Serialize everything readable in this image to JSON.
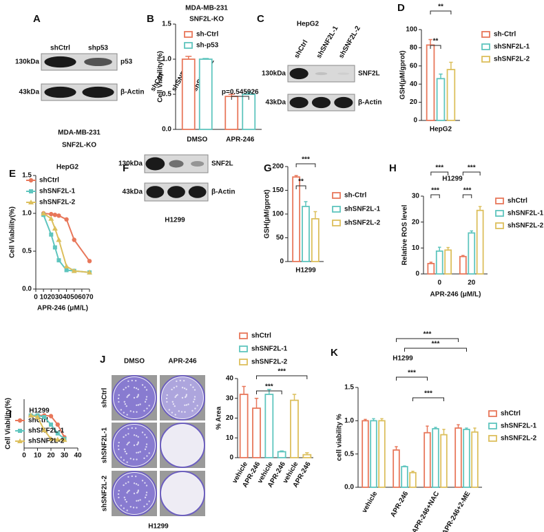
{
  "panels": [
    "A",
    "B",
    "C",
    "D",
    "E",
    "F",
    "G",
    "H",
    "I",
    "J",
    "K"
  ],
  "blots": [
    {
      "lanes": [
        "shCtrl",
        "shp53"
      ],
      "rows": [
        {
          "size": "130kDa",
          "name": "p53"
        },
        {
          "size": "43kDa",
          "name": "β-Actin"
        }
      ],
      "caption": [
        "MDA-MB-231",
        "SNF2L-KO"
      ]
    },
    {
      "title": "HepG2",
      "lanes": [
        "shCtrl",
        "shSNF2L-1",
        "shSNF2L-2"
      ],
      "rows": [
        {
          "size": "130kDa",
          "name": "SNF2L"
        },
        {
          "size": "43kDa",
          "name": "β-Actin"
        }
      ]
    },
    {
      "lanes": [
        "shCtrl",
        "shSNF2L-1",
        "shSNF2L-2"
      ],
      "rows": [
        {
          "size": "130kDa",
          "name": "SNF2L"
        },
        {
          "size": "43kDa",
          "name": "β-Actin"
        }
      ],
      "caption": [
        "H1299"
      ]
    }
  ],
  "colony": {
    "columns": [
      "DMSO",
      "APR-246"
    ],
    "rows": [
      "shCtrl",
      "shSNF2L-1",
      "shSNF2L-2"
    ],
    "caption": "H1299"
  },
  "chart_data": [
    {
      "type": "bar",
      "title": "MDA-MB-231",
      "subtitle": "SNF2L-KO",
      "ylabel": "Cell Viability(%)",
      "categories": [
        "DMSO",
        "APR-246"
      ],
      "series": [
        {
          "name": "sh-Ctrl",
          "color": "#e8775a",
          "values": [
            1.0,
            0.47
          ],
          "errors": [
            0.04,
            0.03
          ]
        },
        {
          "name": "sh-p53",
          "color": "#5ec5be",
          "values": [
            1.0,
            0.5
          ],
          "errors": [
            0.01,
            0.03
          ]
        }
      ],
      "ylim": [
        0,
        1.5
      ],
      "yticks": [
        {
          "value": 0,
          "label": "0.0"
        },
        0.5,
        {
          "value": 1,
          "label": "1.0"
        },
        {
          "value": 1.5,
          "label": "1.5"
        }
      ],
      "annotations": [
        "p=0.545926"
      ]
    },
    {
      "type": "bar",
      "ylabel": "GSH(μM/gprot)",
      "categories": [
        "HepG2"
      ],
      "series": [
        {
          "name": "sh-Ctrl",
          "color": "#e8775a",
          "values": [
            83
          ],
          "errors": [
            6
          ]
        },
        {
          "name": "shSNF2L-1",
          "color": "#5ec5be",
          "values": [
            46
          ],
          "errors": [
            5
          ]
        },
        {
          "name": "shSNF2L-2",
          "color": "#dcbf5c",
          "values": [
            56
          ],
          "errors": [
            8
          ]
        }
      ],
      "ylim": [
        0,
        100
      ],
      "yticks": [
        0,
        20,
        40,
        60,
        80,
        100
      ],
      "annotations": [
        "**",
        "**"
      ]
    },
    {
      "type": "line",
      "title": "HepG2",
      "ylabel": "Cell Viability(%)",
      "xlabel": "APR-246 (μM/L)",
      "x": [
        10,
        20,
        25,
        30,
        40,
        50,
        70
      ],
      "series": [
        {
          "name": "shCtrl",
          "color": "#e8775a",
          "marker": "circle",
          "values": [
            1.0,
            0.99,
            0.98,
            0.97,
            0.92,
            0.65,
            0.37
          ]
        },
        {
          "name": "shSNF2L-1",
          "color": "#5ec5be",
          "marker": "square",
          "values": [
            0.98,
            0.72,
            0.55,
            0.38,
            0.25,
            0.24,
            0.22
          ]
        },
        {
          "name": "shSNF2L-2",
          "color": "#dcbf5c",
          "marker": "triangle",
          "values": [
            1.0,
            0.93,
            0.8,
            0.65,
            0.3,
            0.24,
            0.22
          ]
        }
      ],
      "xlim": [
        0,
        70
      ],
      "xticks": [
        0,
        10,
        20,
        30,
        40,
        50,
        60,
        70
      ],
      "ylim": [
        0,
        1.5
      ],
      "yticks": [
        {
          "value": 0,
          "label": "0.0"
        },
        0.5,
        {
          "value": 1,
          "label": "1.0"
        },
        {
          "value": 1.5,
          "label": "1.5"
        }
      ]
    },
    {
      "type": "bar",
      "ylabel": "GSH(μM/gprot)",
      "categories": [
        "H1299"
      ],
      "series": [
        {
          "name": "sh-Ctrl",
          "color": "#e8775a",
          "values": [
            178
          ],
          "errors": [
            3
          ]
        },
        {
          "name": "shSNF2L-1",
          "color": "#5ec5be",
          "values": [
            116
          ],
          "errors": [
            10
          ]
        },
        {
          "name": "shSNF2L-2",
          "color": "#dcbf5c",
          "values": [
            90
          ],
          "errors": [
            15
          ]
        }
      ],
      "ylim": [
        0,
        200
      ],
      "yticks": [
        0,
        50,
        100,
        150,
        200
      ],
      "annotations": [
        "**",
        "***"
      ]
    },
    {
      "type": "bar",
      "title": "H1299",
      "ylabel": "Relative ROS level",
      "xlabel": "APR-246 (μM/L)",
      "categories": [
        "0",
        "20"
      ],
      "series": [
        {
          "name": "shCtrl",
          "color": "#e8775a",
          "values": [
            4,
            6.7
          ],
          "errors": [
            0.5,
            0.4
          ]
        },
        {
          "name": "shSNF2L-1",
          "color": "#5ec5be",
          "values": [
            8.8,
            15.8
          ],
          "errors": [
            1.5,
            0.8
          ]
        },
        {
          "name": "shSNF2L-2",
          "color": "#dcbf5c",
          "values": [
            9.2,
            24.5
          ],
          "errors": [
            1.0,
            1.5
          ]
        }
      ],
      "ylim": [
        0,
        30
      ],
      "yticks": [
        0,
        10,
        20,
        30
      ],
      "annotations": [
        "***",
        "***",
        "***",
        "***"
      ]
    },
    {
      "type": "line",
      "title": "H1299",
      "ylabel": "Cell Viability(%)",
      "x": [
        5,
        10,
        15,
        20,
        25,
        30
      ],
      "series": [
        {
          "name": "shCtrl",
          "color": "#e8775a",
          "marker": "circle",
          "values": [
            1.0,
            1.0,
            1.0,
            0.98,
            0.72,
            0.33
          ]
        },
        {
          "name": "shSNF2L-1",
          "color": "#5ec5be",
          "marker": "square",
          "values": [
            1.0,
            1.0,
            0.95,
            0.72,
            0.45,
            0.28
          ]
        },
        {
          "name": "shSNF2L-2",
          "color": "#dcbf5c",
          "marker": "triangle",
          "values": [
            1.0,
            0.95,
            0.55,
            0.28,
            0.26,
            0.25
          ]
        }
      ],
      "xlim": [
        0,
        40
      ],
      "xticks": [
        0,
        10,
        20,
        30,
        40
      ],
      "ylim": [
        0,
        1.5
      ]
    },
    {
      "type": "bar",
      "ylabel": "% Area",
      "categories": [
        "vehicle",
        "APR-246",
        "vehicle",
        "APR-246",
        "vehicle",
        "APR-246"
      ],
      "values": [
        32,
        25,
        32,
        3,
        29,
        1.5
      ],
      "errors": [
        4,
        5,
        2.5,
        0.4,
        3,
        1
      ],
      "colors": [
        "#e8775a",
        "#e8775a",
        "#5ec5be",
        "#5ec5be",
        "#dcbf5c",
        "#dcbf5c"
      ],
      "legend": [
        {
          "name": "shCtrl",
          "color": "#e8775a"
        },
        {
          "name": "shSNF2L-1",
          "color": "#5ec5be"
        },
        {
          "name": "shSNF2L-2",
          "color": "#dcbf5c"
        }
      ],
      "ylim": [
        0,
        40
      ],
      "yticks": [
        0,
        10,
        20,
        30,
        40
      ],
      "annotations": [
        "***",
        "***"
      ]
    },
    {
      "type": "bar",
      "title": "H1299",
      "ylabel": "cell viability %",
      "categories": [
        "vehicle",
        "APR-246",
        "APR-246+NAC",
        "APR-246+2-ME"
      ],
      "series": [
        {
          "name": "shCtrl",
          "color": "#e8775a",
          "values": [
            1.0,
            0.56,
            0.82,
            0.89
          ],
          "errors": [
            0.02,
            0.05,
            0.1,
            0.05
          ]
        },
        {
          "name": "shSNF2L-1",
          "color": "#5ec5be",
          "values": [
            1.0,
            0.31,
            0.88,
            0.87
          ],
          "errors": [
            0.03,
            0.01,
            0.02,
            0.02
          ]
        },
        {
          "name": "shSNF2L-2",
          "color": "#dcbf5c",
          "values": [
            1.0,
            0.22,
            0.79,
            0.83
          ],
          "errors": [
            0.03,
            0.02,
            0.08,
            0.06
          ]
        }
      ],
      "ylim": [
        0,
        1.5
      ],
      "yticks": [
        {
          "value": 0,
          "label": "0.0"
        },
        0.5,
        {
          "value": 1,
          "label": "1.0"
        },
        {
          "value": 1.5,
          "label": "1.5"
        }
      ],
      "annotations": [
        "***",
        "***",
        "***",
        "***"
      ]
    }
  ]
}
